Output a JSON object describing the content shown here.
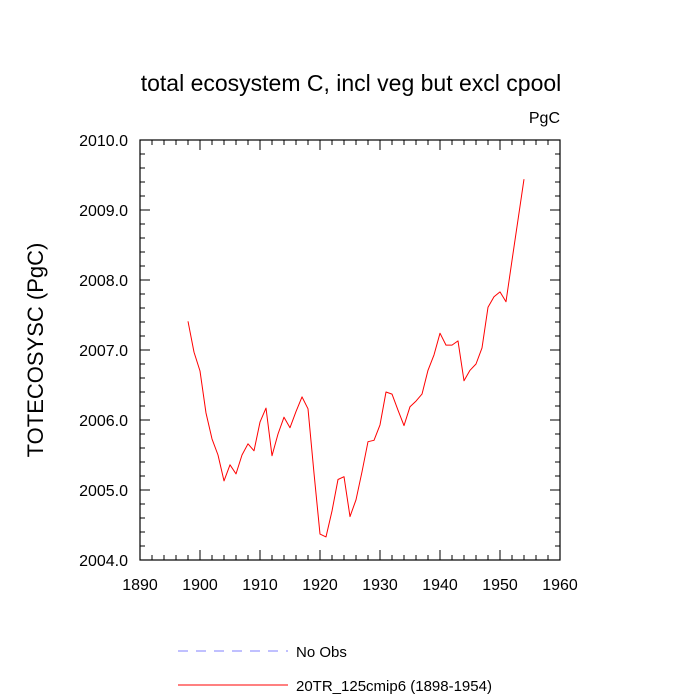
{
  "chart_data": {
    "type": "line",
    "title": "total ecosystem C, incl veg but excl cpool",
    "units_label": "PgC",
    "ylabel": "TOTECOSYSC  (PgC)",
    "xlabel": "",
    "xlim": [
      1890,
      1960
    ],
    "ylim": [
      2004.0,
      2010.0
    ],
    "xticks": [
      1890,
      1900,
      1910,
      1920,
      1930,
      1940,
      1950,
      1960
    ],
    "xtick_labels": [
      "1890",
      "1900",
      "1910",
      "1920",
      "1930",
      "1940",
      "1950",
      "1960"
    ],
    "yticks": [
      2004.0,
      2005.0,
      2006.0,
      2007.0,
      2008.0,
      2009.0,
      2010.0
    ],
    "ytick_labels": [
      "2004.0",
      "2005.0",
      "2006.0",
      "2007.0",
      "2008.0",
      "2009.0",
      "2010.0"
    ],
    "series": [
      {
        "name": "20TR_125cmip6 (1898-1954)",
        "color": "#ff0000",
        "style": "solid",
        "x": [
          1898,
          1899,
          1900,
          1901,
          1902,
          1903,
          1904,
          1905,
          1906,
          1907,
          1908,
          1909,
          1910,
          1911,
          1912,
          1913,
          1914,
          1915,
          1916,
          1917,
          1918,
          1919,
          1920,
          1921,
          1922,
          1923,
          1924,
          1925,
          1926,
          1927,
          1928,
          1929,
          1930,
          1931,
          1932,
          1933,
          1934,
          1935,
          1936,
          1937,
          1938,
          1939,
          1940,
          1941,
          1942,
          1943,
          1944,
          1945,
          1946,
          1947,
          1948,
          1949,
          1950,
          1951,
          1952,
          1953,
          1954
        ],
        "values": [
          2007.41,
          2006.97,
          2006.7,
          2006.1,
          2005.73,
          2005.5,
          2005.13,
          2005.36,
          2005.23,
          2005.5,
          2005.66,
          2005.56,
          2005.97,
          2006.17,
          2005.49,
          2005.8,
          2006.04,
          2005.89,
          2006.12,
          2006.33,
          2006.16,
          2005.24,
          2004.37,
          2004.33,
          2004.7,
          2005.15,
          2005.19,
          2004.62,
          2004.86,
          2005.26,
          2005.69,
          2005.71,
          2005.93,
          2006.4,
          2006.37,
          2006.14,
          2005.92,
          2006.19,
          2006.27,
          2006.37,
          2006.71,
          2006.93,
          2007.24,
          2007.07,
          2007.07,
          2007.13,
          2006.56,
          2006.71,
          2006.8,
          2007.03,
          2007.61,
          2007.76,
          2007.83,
          2007.69,
          2008.28,
          2008.86,
          2009.44
        ]
      }
    ],
    "legend": {
      "placement": "bottom",
      "entries": [
        {
          "label": "No Obs",
          "color": "#8080ff",
          "style": "dashed"
        },
        {
          "label": "20TR_125cmip6 (1898-1954)",
          "color": "#ff0000",
          "style": "solid"
        }
      ]
    }
  }
}
